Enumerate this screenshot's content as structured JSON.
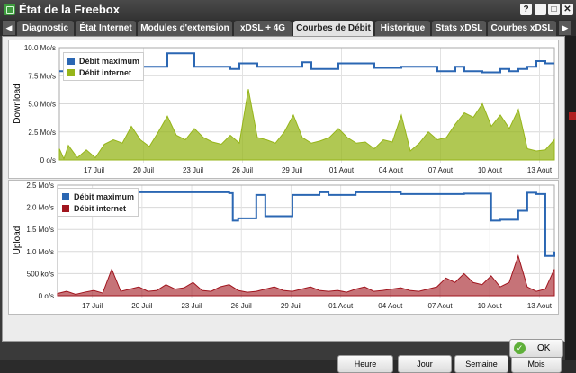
{
  "window": {
    "title": "État de la Freebox",
    "controls": {
      "help": "?",
      "minimize": "_",
      "maximize": "□",
      "close": "✕"
    }
  },
  "tabs": [
    {
      "label": "Diagnostic",
      "active": false
    },
    {
      "label": "État Internet",
      "active": false
    },
    {
      "label": "Modules d'extension",
      "active": false
    },
    {
      "label": "xDSL + 4G",
      "active": false
    },
    {
      "label": "Courbes de Débit",
      "active": true
    },
    {
      "label": "Historique",
      "active": false
    },
    {
      "label": "Stats xDSL",
      "active": false
    },
    {
      "label": "Courbes xDSL",
      "active": false
    }
  ],
  "tab_nav": {
    "prev": "◀",
    "next": "▶"
  },
  "colors": {
    "max": "#2b67b3",
    "download": "#96b51a",
    "upload": "#a0151e"
  },
  "chart_data": [
    {
      "type": "area",
      "ylabel": "Download",
      "yticks": [
        "0 o/s",
        "2.5 Mo/s",
        "5.0 Mo/s",
        "7.5 Mo/s",
        "10.0 Mo/s"
      ],
      "ylim": [
        0,
        10
      ],
      "unit": "Mo/s",
      "xticks": [
        "17 Juil",
        "20 Juil",
        "23 Juil",
        "26 Juil",
        "29 Juil",
        "01 Aout",
        "04 Aout",
        "07 Aout",
        "10 Aout",
        "13 Aout"
      ],
      "legend": [
        "Débit maximum",
        "Débit internet"
      ],
      "series": [
        {
          "name": "Débit maximum",
          "x": [
            0,
            2,
            5,
            11,
            12,
            15,
            19,
            20,
            22,
            24,
            27,
            28,
            31,
            34,
            35,
            38,
            41,
            42,
            43,
            44,
            45,
            47,
            49,
            50,
            51,
            52,
            53,
            54,
            55
          ],
          "values": [
            7.9,
            7.9,
            8.3,
            8.3,
            9.5,
            8.3,
            8.1,
            8.6,
            8.3,
            8.3,
            8.7,
            8.1,
            8.6,
            8.6,
            8.2,
            8.3,
            8.3,
            7.9,
            7.9,
            8.3,
            7.9,
            7.8,
            8.1,
            7.9,
            8.1,
            8.3,
            8.8,
            8.6,
            8.6
          ]
        },
        {
          "name": "Débit internet",
          "x": [
            0,
            0.5,
            1,
            2,
            3,
            4,
            5,
            6,
            7,
            8,
            9,
            10,
            11,
            12,
            13,
            14,
            15,
            16,
            17,
            18,
            19,
            20,
            21,
            22,
            23,
            24,
            25,
            26,
            27,
            28,
            29,
            30,
            31,
            32,
            33,
            34,
            35,
            36,
            37,
            38,
            39,
            40,
            41,
            42,
            43,
            44,
            45,
            46,
            47,
            48,
            49,
            50,
            51,
            52,
            53,
            54,
            55
          ],
          "values": [
            1.0,
            0.1,
            1.3,
            0.2,
            0.9,
            0.2,
            1.4,
            1.8,
            1.5,
            3.0,
            1.8,
            1.2,
            2.5,
            3.9,
            2.2,
            1.8,
            2.8,
            2.0,
            1.6,
            1.4,
            2.2,
            1.5,
            6.3,
            2.0,
            1.8,
            1.5,
            2.5,
            4.0,
            2.0,
            1.5,
            1.7,
            2.0,
            2.8,
            2.0,
            1.5,
            1.6,
            1.0,
            1.8,
            1.6,
            4.0,
            0.8,
            1.5,
            2.5,
            1.8,
            2.0,
            3.2,
            4.2,
            3.8,
            5.0,
            3.0,
            4.0,
            2.8,
            4.5,
            1.0,
            0.8,
            0.9,
            1.8
          ]
        }
      ]
    },
    {
      "type": "area",
      "ylabel": "Upload",
      "yticks": [
        "0 o/s",
        "500 ko/s",
        "1.0 Mo/s",
        "1.5 Mo/s",
        "2.0 Mo/s",
        "2.5 Mo/s"
      ],
      "ylim": [
        0,
        2.5
      ],
      "unit": "Mo/s",
      "xticks": [
        "17 Juil",
        "20 Juil",
        "23 Juil",
        "26 Juil",
        "29 Juil",
        "01 Aout",
        "04 Aout",
        "07 Aout",
        "10 Aout",
        "13 Aout"
      ],
      "legend": [
        "Débit maximum",
        "Débit internet"
      ],
      "series": [
        {
          "name": "Débit maximum",
          "x": [
            0,
            6,
            19,
            19.4,
            20,
            22,
            23,
            26,
            29,
            30,
            33,
            38,
            45,
            46,
            48,
            49,
            51,
            52,
            53,
            54,
            55
          ],
          "values": [
            2.34,
            2.34,
            2.32,
            1.7,
            1.75,
            2.28,
            1.8,
            2.28,
            2.34,
            2.28,
            2.34,
            2.3,
            2.31,
            2.31,
            1.7,
            1.72,
            1.92,
            2.33,
            2.3,
            0.9,
            1.0
          ]
        },
        {
          "name": "Débit internet",
          "x": [
            0,
            1,
            2,
            3,
            4,
            5,
            6,
            7,
            8,
            9,
            10,
            11,
            12,
            13,
            14,
            15,
            16,
            17,
            18,
            19,
            20,
            21,
            22,
            23,
            24,
            25,
            26,
            27,
            28,
            29,
            30,
            31,
            32,
            33,
            34,
            35,
            36,
            37,
            38,
            39,
            40,
            41,
            42,
            43,
            44,
            45,
            46,
            47,
            48,
            49,
            50,
            51,
            52,
            53,
            54,
            55
          ],
          "values": [
            0.05,
            0.1,
            0.03,
            0.08,
            0.12,
            0.06,
            0.6,
            0.1,
            0.15,
            0.2,
            0.1,
            0.12,
            0.25,
            0.15,
            0.18,
            0.3,
            0.12,
            0.1,
            0.2,
            0.25,
            0.12,
            0.08,
            0.1,
            0.15,
            0.2,
            0.12,
            0.1,
            0.15,
            0.2,
            0.12,
            0.1,
            0.12,
            0.08,
            0.15,
            0.2,
            0.1,
            0.12,
            0.15,
            0.18,
            0.12,
            0.1,
            0.15,
            0.2,
            0.4,
            0.3,
            0.5,
            0.3,
            0.25,
            0.45,
            0.2,
            0.3,
            0.9,
            0.2,
            0.1,
            0.15,
            0.6
          ]
        }
      ]
    }
  ],
  "range_buttons": [
    "Heure",
    "Jour",
    "Semaine",
    "Mois"
  ],
  "ok_button": {
    "label": "OK",
    "icon": "check-icon"
  }
}
